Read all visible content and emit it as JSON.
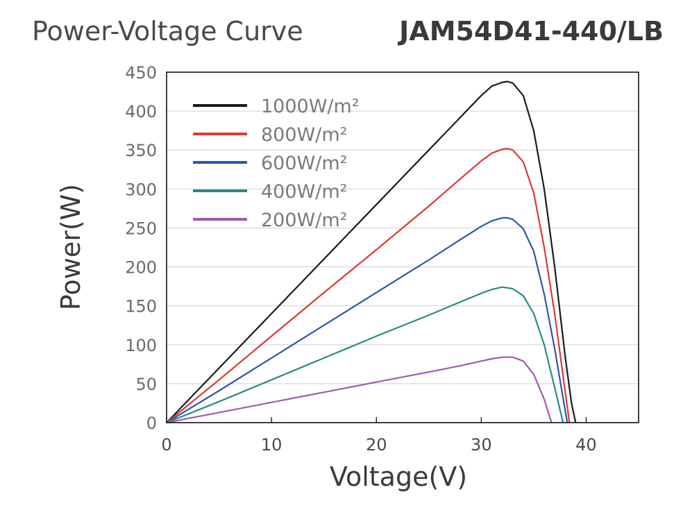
{
  "chart_data": {
    "type": "line",
    "title": "Power-Voltage Curve",
    "model": "JAM54D41-440/LB",
    "xlabel": "Voltage(V)",
    "ylabel": "Power(W)",
    "xlim": [
      0,
      45
    ],
    "ylim": [
      0,
      450
    ],
    "xticks": [
      0,
      10,
      20,
      30,
      40
    ],
    "xtick_labels": [
      "0",
      "10",
      "20",
      "30",
      "40"
    ],
    "yticks": [
      0,
      50,
      100,
      150,
      200,
      250,
      300,
      350,
      400,
      450
    ],
    "ytick_labels": [
      "0",
      "50",
      "100",
      "150",
      "200",
      "250",
      "300",
      "350",
      "400",
      "450"
    ],
    "grid": "horizontal",
    "legend_position": "top-left",
    "series": [
      {
        "name": "1000W/m²",
        "color": "#1a1a1a",
        "x": [
          0,
          5,
          10,
          15,
          20,
          25,
          28,
          30,
          31,
          32,
          32.5,
          33,
          34,
          35,
          36,
          37,
          38,
          38.6,
          39
        ],
        "y": [
          0,
          70,
          140,
          210,
          280,
          350,
          392,
          420,
          432,
          437,
          438,
          436,
          420,
          375,
          300,
          200,
          85,
          25,
          0
        ]
      },
      {
        "name": "800W/m²",
        "color": "#d93a35",
        "x": [
          0,
          5,
          10,
          15,
          20,
          25,
          28,
          30,
          31,
          32,
          32.5,
          33,
          34,
          35,
          36,
          37,
          38,
          38.4
        ],
        "y": [
          0,
          55,
          111,
          167,
          222,
          278,
          313,
          336,
          346,
          351,
          352,
          350,
          335,
          295,
          225,
          140,
          40,
          0
        ]
      },
      {
        "name": "600W/m²",
        "color": "#2c56a8",
        "x": [
          0,
          5,
          10,
          15,
          20,
          25,
          28,
          30,
          31,
          32,
          32.5,
          33,
          34,
          35,
          36,
          37,
          38.2
        ],
        "y": [
          0,
          41,
          83,
          125,
          167,
          209,
          235,
          252,
          259,
          263,
          263,
          261,
          249,
          220,
          165,
          95,
          0
        ]
      },
      {
        "name": "400W/m²",
        "color": "#2a8a82",
        "x": [
          0,
          5,
          10,
          15,
          20,
          25,
          28,
          30,
          31,
          32,
          33,
          34,
          35,
          36,
          37,
          37.8
        ],
        "y": [
          0,
          27,
          55,
          83,
          111,
          138,
          155,
          166,
          171,
          174,
          172,
          163,
          140,
          100,
          45,
          0
        ]
      },
      {
        "name": "200W/m²",
        "color": "#a05ab0",
        "x": [
          0,
          5,
          10,
          15,
          20,
          25,
          28,
          30,
          31,
          32,
          33,
          34,
          35,
          36,
          36.7
        ],
        "y": [
          0,
          13,
          26,
          39,
          52,
          65,
          73,
          79,
          82,
          84,
          84,
          79,
          62,
          30,
          0
        ]
      }
    ]
  }
}
